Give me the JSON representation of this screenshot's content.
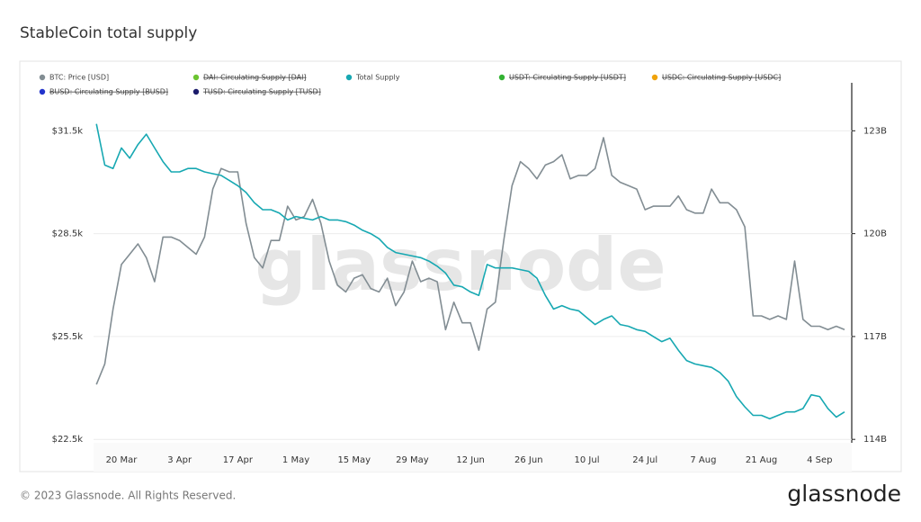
{
  "page": {
    "title": "StableCoin total supply",
    "footer": "© 2023 Glassnode. All Rights Reserved.",
    "logo": "glassnode",
    "watermark": "glassnode"
  },
  "chart_data": {
    "type": "line",
    "categories": [
      null,
      null,
      null,
      "20 Mar",
      null,
      null,
      null,
      null,
      null,
      null,
      "3 Apr",
      null,
      null,
      null,
      null,
      null,
      null,
      "17 Apr",
      null,
      null,
      null,
      null,
      null,
      null,
      "1 May",
      null,
      null,
      null,
      null,
      null,
      null,
      "15 May",
      null,
      null,
      null,
      null,
      null,
      null,
      "29 May",
      null,
      null,
      null,
      null,
      null,
      null,
      "12 Jun",
      null,
      null,
      null,
      null,
      null,
      null,
      "26 Jun",
      null,
      null,
      null,
      null,
      null,
      null,
      "10 Jul",
      null,
      null,
      null,
      null,
      null,
      null,
      "24 Jul",
      null,
      null,
      null,
      null,
      null,
      null,
      "7 Aug",
      null,
      null,
      null,
      null,
      null,
      null,
      "21 Aug",
      null,
      null,
      null,
      null,
      null,
      null,
      "4 Sep",
      null,
      null,
      null
    ],
    "series": [
      {
        "name": "BTC: Price [USD]",
        "color": "#828d93",
        "axis": "y",
        "values": [
          24100,
          24700,
          26300,
          27600,
          27900,
          28200,
          27800,
          27100,
          28400,
          28400,
          28300,
          28100,
          27900,
          28400,
          29800,
          30400,
          30300,
          30300,
          28800,
          27800,
          27500,
          28300,
          28300,
          29300,
          28900,
          29000,
          29500,
          28800,
          27700,
          27000,
          26800,
          27200,
          27300,
          26900,
          26800,
          27200,
          26400,
          26800,
          27700,
          27100,
          27200,
          27100,
          25700,
          26500,
          25900,
          25900,
          25100,
          26300,
          26500,
          28300,
          29900,
          30600,
          30400,
          30100,
          30500,
          30600,
          30800,
          30100,
          30200,
          30200,
          30400,
          31300,
          30200,
          30000,
          29900,
          29800,
          29200,
          29300,
          29300,
          29300,
          29600,
          29200,
          29100,
          29100,
          29800,
          29400,
          29400,
          29200,
          28700,
          26100,
          26100,
          26000,
          26100,
          26000,
          27700,
          26000,
          25800,
          25800,
          25700,
          25800,
          25700
        ]
      },
      {
        "name": "Total Supply",
        "color": "#17a8b2",
        "axis": "y2",
        "values": [
          123.2,
          122.0,
          121.9,
          122.5,
          122.2,
          122.6,
          122.9,
          122.5,
          122.1,
          121.8,
          121.8,
          121.9,
          121.9,
          121.8,
          121.75,
          121.7,
          121.55,
          121.4,
          121.2,
          120.9,
          120.7,
          120.7,
          120.6,
          120.4,
          120.5,
          120.45,
          120.4,
          120.5,
          120.4,
          120.4,
          120.35,
          120.25,
          120.1,
          120.0,
          119.85,
          119.6,
          119.45,
          119.4,
          119.35,
          119.3,
          119.2,
          119.05,
          118.85,
          118.5,
          118.45,
          118.3,
          118.2,
          119.1,
          119.0,
          119.0,
          119.0,
          118.95,
          118.9,
          118.7,
          118.2,
          117.8,
          117.9,
          117.8,
          117.75,
          117.55,
          117.35,
          117.5,
          117.6,
          117.35,
          117.3,
          117.2,
          117.15,
          117.0,
          116.85,
          116.95,
          116.6,
          116.3,
          116.2,
          116.15,
          116.1,
          115.95,
          115.7,
          115.25,
          114.95,
          114.7,
          114.7,
          114.6,
          114.7,
          114.8,
          114.8,
          114.9,
          115.3,
          115.25,
          114.9,
          114.65,
          114.8
        ]
      }
    ],
    "hidden_series": [
      {
        "name": "USDT: Circulating Supply [USDT]",
        "color": "#33b233"
      },
      {
        "name": "USDC: Circulating Supply [USDC]",
        "color": "#f0a30a"
      },
      {
        "name": "BUSD: Circulating Supply [BUSD]",
        "color": "#2233cc"
      },
      {
        "name": "DAI: Circulating Supply [DAI]",
        "color": "#6cc431"
      },
      {
        "name": "TUSD: Circulating Supply [TUSD]",
        "color": "#1c1c6b"
      }
    ],
    "ylim": [
      22400,
      32900
    ],
    "yticks": [
      {
        "value": 22500,
        "label": "$22.5k"
      },
      {
        "value": 25500,
        "label": "$25.5k"
      },
      {
        "value": 28500,
        "label": "$28.5k"
      },
      {
        "value": 31500,
        "label": "$31.5k"
      }
    ],
    "y2lim": [
      113.9,
      124.4
    ],
    "y2ticks": [
      {
        "value": 114,
        "label": "114B"
      },
      {
        "value": 117,
        "label": "117B"
      },
      {
        "value": 120,
        "label": "120B"
      },
      {
        "value": 123,
        "label": "123B"
      }
    ],
    "grid": true
  }
}
